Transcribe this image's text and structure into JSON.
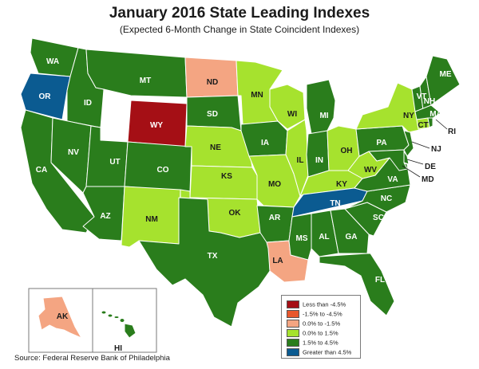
{
  "title": "January 2016 State Leading Indexes",
  "subtitle": "(Expected 6-Month Change in State Coincident Indexes)",
  "source": "Source: Federal Reserve Bank of Philadelphia",
  "colors": {
    "lt_m4_5": "#a50f15",
    "m4_5_m1_5": "#e8572c",
    "m1_5_0": "#f4a582",
    "0_1_5": "#a6e22e",
    "1_5_4_5": "#2a7d1c",
    "gt_4_5": "#0b5b91"
  },
  "legend": [
    {
      "label": "Less than -4.5%",
      "color": "#a50f15"
    },
    {
      "label": "-1.5% to -4.5%",
      "color": "#e8572c"
    },
    {
      "label": "0.0% to -1.5%",
      "color": "#f4a582"
    },
    {
      "label": "0.0% to  1.5%",
      "color": "#a6e22e"
    },
    {
      "label": "1.5% to  4.5%",
      "color": "#2a7d1c"
    },
    {
      "label": "Greater than 4.5%",
      "color": "#0b5b91"
    }
  ],
  "states": {
    "WA": {
      "label": "WA",
      "category": "1.5% to  4.5%"
    },
    "OR": {
      "label": "OR",
      "category": "Greater than 4.5%"
    },
    "CA": {
      "label": "CA",
      "category": "1.5% to  4.5%"
    },
    "ID": {
      "label": "ID",
      "category": "1.5% to  4.5%"
    },
    "NV": {
      "label": "NV",
      "category": "1.5% to  4.5%"
    },
    "MT": {
      "label": "MT",
      "category": "1.5% to  4.5%"
    },
    "WY": {
      "label": "WY",
      "category": "Less than -4.5%"
    },
    "UT": {
      "label": "UT",
      "category": "1.5% to  4.5%"
    },
    "AZ": {
      "label": "AZ",
      "category": "1.5% to  4.5%"
    },
    "CO": {
      "label": "CO",
      "category": "1.5% to  4.5%"
    },
    "NM": {
      "label": "NM",
      "category": "0.0% to  1.5%"
    },
    "ND": {
      "label": "ND",
      "category": "0.0% to -1.5%"
    },
    "SD": {
      "label": "SD",
      "category": "1.5% to  4.5%"
    },
    "NE": {
      "label": "NE",
      "category": "0.0% to  1.5%"
    },
    "KS": {
      "label": "KS",
      "category": "0.0% to  1.5%"
    },
    "OK": {
      "label": "OK",
      "category": "0.0% to  1.5%"
    },
    "TX": {
      "label": "TX",
      "category": "1.5% to  4.5%"
    },
    "MN": {
      "label": "MN",
      "category": "0.0% to  1.5%"
    },
    "IA": {
      "label": "IA",
      "category": "1.5% to  4.5%"
    },
    "MO": {
      "label": "MO",
      "category": "0.0% to  1.5%"
    },
    "AR": {
      "label": "AR",
      "category": "1.5% to  4.5%"
    },
    "LA": {
      "label": "LA",
      "category": "0.0% to -1.5%"
    },
    "WI": {
      "label": "WI",
      "category": "0.0% to  1.5%"
    },
    "IL": {
      "label": "IL",
      "category": "0.0% to  1.5%"
    },
    "MI": {
      "label": "MI",
      "category": "1.5% to  4.5%"
    },
    "IN": {
      "label": "IN",
      "category": "1.5% to  4.5%"
    },
    "OH": {
      "label": "OH",
      "category": "0.0% to  1.5%"
    },
    "KY": {
      "label": "KY",
      "category": "0.0% to  1.5%"
    },
    "TN": {
      "label": "TN",
      "category": "Greater than 4.5%"
    },
    "MS": {
      "label": "MS",
      "category": "1.5% to  4.5%"
    },
    "AL": {
      "label": "AL",
      "category": "1.5% to  4.5%"
    },
    "GA": {
      "label": "GA",
      "category": "1.5% to  4.5%"
    },
    "FL": {
      "label": "FL",
      "category": "1.5% to  4.5%"
    },
    "SC": {
      "label": "SC",
      "category": "1.5% to  4.5%"
    },
    "NC": {
      "label": "NC",
      "category": "1.5% to  4.5%"
    },
    "VA": {
      "label": "VA",
      "category": "1.5% to  4.5%"
    },
    "WV": {
      "label": "WV",
      "category": "0.0% to  1.5%"
    },
    "PA": {
      "label": "PA",
      "category": "1.5% to  4.5%"
    },
    "NY": {
      "label": "NY",
      "category": "0.0% to  1.5%"
    },
    "VT": {
      "label": "VT",
      "category": "1.5% to  4.5%"
    },
    "NH": {
      "label": "NH",
      "category": "1.5% to  4.5%"
    },
    "ME": {
      "label": "ME",
      "category": "1.5% to  4.5%"
    },
    "MA": {
      "label": "MA",
      "category": "1.5% to  4.5%"
    },
    "CT": {
      "label": "CT",
      "category": "0.0% to  1.5%"
    },
    "RI": {
      "label": "RI",
      "category": "1.5% to  4.5%"
    },
    "NJ": {
      "label": "NJ",
      "category": "1.5% to  4.5%"
    },
    "DE": {
      "label": "DE",
      "category": "1.5% to  4.5%"
    },
    "MD": {
      "label": "MD",
      "category": "1.5% to  4.5%"
    },
    "AK": {
      "label": "AK",
      "category": "0.0% to -1.5%"
    },
    "HI": {
      "label": "HI",
      "category": "1.5% to  4.5%"
    }
  }
}
